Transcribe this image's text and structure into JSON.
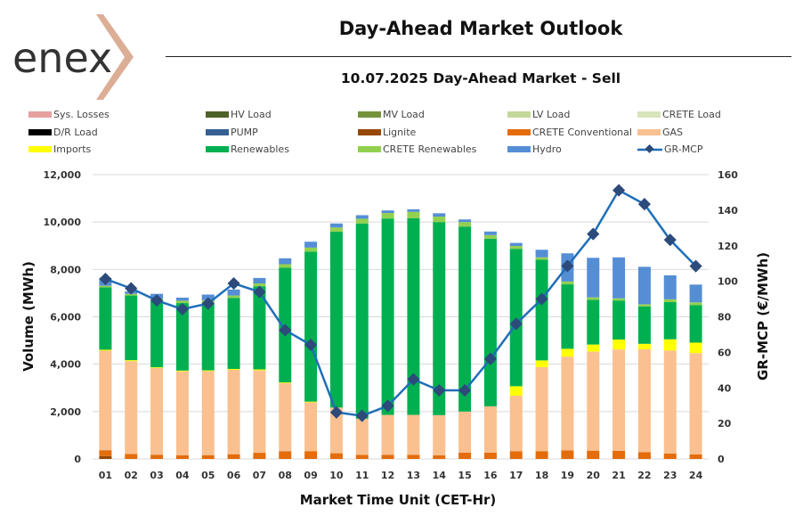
{
  "header": {
    "logo_text": "enex",
    "title": "Day-Ahead Market Outlook",
    "subtitle": "10.07.2025  Day-Ahead Market - Sell"
  },
  "chart_data": {
    "type": "bar",
    "stacked": true,
    "title": "10.07.2025  Day-Ahead Market - Sell",
    "xlabel": "Market Time Unit (CET-Hr)",
    "ylabel": "Volume (MWh)",
    "y2label": "GR-MCP (€/MWh)",
    "ylim": [
      0,
      12000
    ],
    "y2lim": [
      0,
      160
    ],
    "yticks": [
      "0",
      "2,000",
      "4,000",
      "6,000",
      "8,000",
      "10,000",
      "12,000"
    ],
    "yticks_values": [
      0,
      2000,
      4000,
      6000,
      8000,
      10000,
      12000
    ],
    "y2ticks": [
      "0",
      "20",
      "40",
      "60",
      "80",
      "100",
      "120",
      "140",
      "160"
    ],
    "y2ticks_values": [
      0,
      20,
      40,
      60,
      80,
      100,
      120,
      140,
      160
    ],
    "grid": true,
    "legend_position": "top",
    "categories": [
      "01",
      "02",
      "03",
      "04",
      "05",
      "06",
      "07",
      "08",
      "09",
      "10",
      "11",
      "12",
      "13",
      "14",
      "15",
      "16",
      "17",
      "18",
      "19",
      "20",
      "21",
      "22",
      "23",
      "24"
    ],
    "legend": [
      {
        "name": "Sys. Losses",
        "color": "#e6a0a0",
        "kind": "bar"
      },
      {
        "name": "HV Load",
        "color": "#4f6228",
        "kind": "bar"
      },
      {
        "name": "MV Load",
        "color": "#76933c",
        "kind": "bar"
      },
      {
        "name": "LV Load",
        "color": "#c4d79b",
        "kind": "bar"
      },
      {
        "name": "CRETE Load",
        "color": "#d8e4bc",
        "kind": "bar"
      },
      {
        "name": "D/R Load",
        "color": "#000000",
        "kind": "bar"
      },
      {
        "name": "PUMP",
        "color": "#366092",
        "kind": "bar"
      },
      {
        "name": "Lignite",
        "color": "#974706",
        "kind": "bar"
      },
      {
        "name": "CRETE Conventional",
        "color": "#e46c0a",
        "kind": "bar"
      },
      {
        "name": "GAS",
        "color": "#fac090",
        "kind": "bar"
      },
      {
        "name": "Imports",
        "color": "#ffff00",
        "kind": "bar"
      },
      {
        "name": "Renewables",
        "color": "#00b050",
        "kind": "bar"
      },
      {
        "name": "CRETE Renewables",
        "color": "#92d050",
        "kind": "bar"
      },
      {
        "name": "Hydro",
        "color": "#558ed5",
        "kind": "bar"
      },
      {
        "name": "GR-MCP",
        "color": "#1f6fb8",
        "marker_color": "#2c4a7a",
        "kind": "line"
      }
    ],
    "series": [
      {
        "name": "Lignite",
        "color": "#974706",
        "values": [
          120,
          0,
          0,
          0,
          0,
          0,
          0,
          0,
          0,
          0,
          0,
          0,
          0,
          0,
          0,
          0,
          0,
          0,
          0,
          0,
          0,
          0,
          0,
          0
        ]
      },
      {
        "name": "CRETE Conventional",
        "color": "#e46c0a",
        "values": [
          250,
          210,
          180,
          160,
          160,
          200,
          260,
          320,
          330,
          240,
          170,
          170,
          170,
          150,
          270,
          270,
          320,
          330,
          360,
          350,
          340,
          290,
          230,
          190
        ]
      },
      {
        "name": "GAS",
        "color": "#fac090",
        "values": [
          4200,
          3920,
          3660,
          3540,
          3550,
          3560,
          3480,
          2880,
          2060,
          1930,
          1530,
          1690,
          1690,
          1700,
          1730,
          1950,
          2350,
          3550,
          3960,
          4180,
          4280,
          4340,
          4350,
          4280
        ]
      },
      {
        "name": "Imports",
        "color": "#ffff00",
        "values": [
          40,
          40,
          30,
          30,
          30,
          40,
          40,
          30,
          30,
          0,
          0,
          0,
          0,
          0,
          0,
          0,
          400,
          280,
          330,
          300,
          420,
          230,
          470,
          440
        ]
      },
      {
        "name": "Renewables",
        "color": "#00b050",
        "values": [
          2630,
          2730,
          2820,
          2850,
          2860,
          3000,
          3510,
          4840,
          6330,
          7420,
          8240,
          8290,
          8300,
          8150,
          7810,
          7080,
          5800,
          4250,
          2720,
          1890,
          1650,
          1580,
          1570,
          1580
        ]
      },
      {
        "name": "CRETE Renewables",
        "color": "#92d050",
        "values": [
          70,
          70,
          80,
          100,
          100,
          100,
          120,
          150,
          170,
          180,
          200,
          230,
          270,
          230,
          190,
          150,
          120,
          100,
          120,
          100,
          90,
          90,
          120,
          120
        ]
      },
      {
        "name": "Hydro",
        "color": "#558ed5",
        "values": [
          330,
          100,
          200,
          130,
          240,
          250,
          230,
          250,
          250,
          170,
          150,
          110,
          110,
          140,
          110,
          150,
          130,
          320,
          1190,
          1670,
          1730,
          1580,
          1010,
          750
        ]
      }
    ],
    "line_series": {
      "name": "GR-MCP",
      "axis": "right",
      "values": [
        101.3,
        96.0,
        89.2,
        84.3,
        87.5,
        98.8,
        94.0,
        72.5,
        64.2,
        26.2,
        24.3,
        29.9,
        44.8,
        38.6,
        38.6,
        56.3,
        76.0,
        90.0,
        108.6,
        126.6,
        151.2,
        143.4,
        123.3,
        108.5
      ]
    }
  }
}
